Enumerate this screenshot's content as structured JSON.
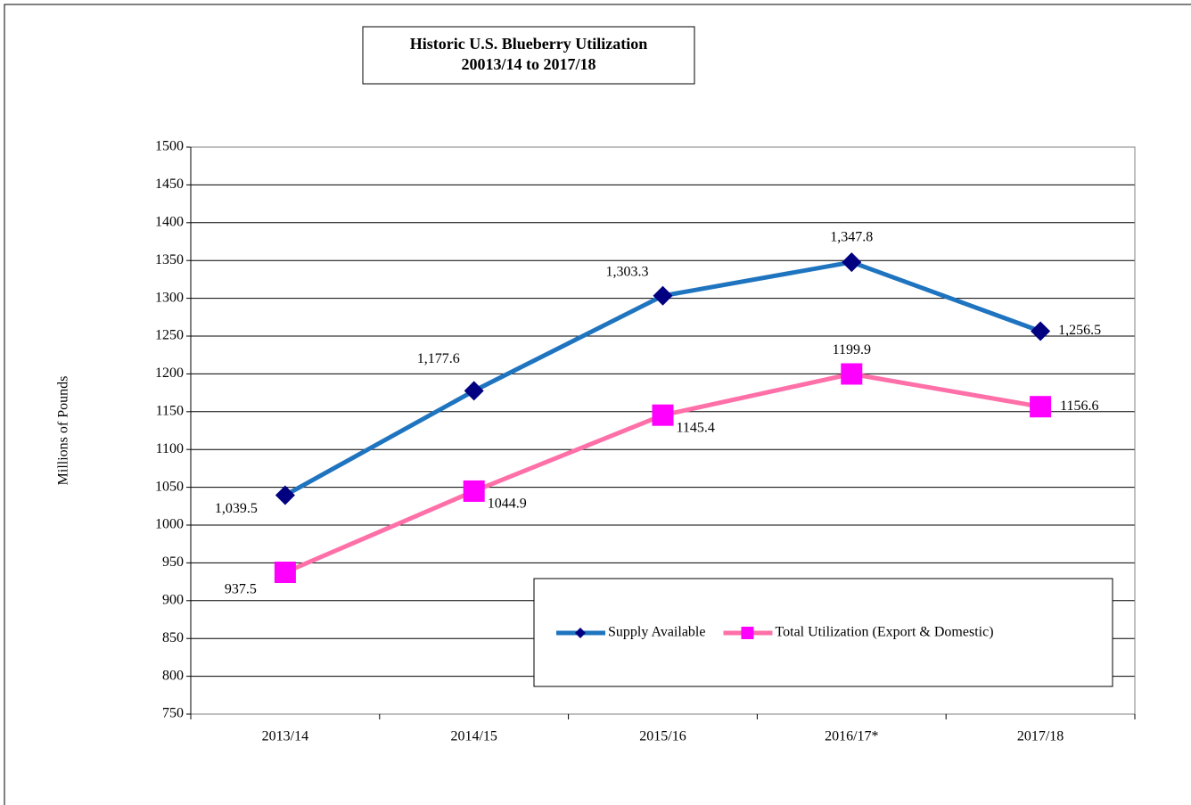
{
  "chart_data": {
    "type": "line",
    "title": "Historic U.S. Blueberry Utilization",
    "subtitle": "20013/14 to 2017/18",
    "y_label": "Millions of Pounds",
    "categories": [
      "2013/14",
      "2014/15",
      "2015/16",
      "2016/17*",
      "2017/18"
    ],
    "series": [
      {
        "name": "Supply Available",
        "color": "#1f74c0",
        "marker_color": "#000080",
        "marker": "diamond",
        "values": [
          1039.5,
          1177.6,
          1303.3,
          1347.8,
          1256.5
        ],
        "value_labels": [
          "1,039.5",
          "1,177.6",
          "1,303.3",
          "1,347.8",
          "1,256.5"
        ]
      },
      {
        "name": "Total Utilization (Export & Domestic)",
        "color": "#ff6fa8",
        "marker_color": "#ff00ff",
        "marker": "square",
        "values": [
          937.5,
          1044.9,
          1145.4,
          1199.9,
          1156.6
        ]
      }
    ],
    "ylim": [
      750,
      1500
    ],
    "yticks": [
      750,
      800,
      850,
      900,
      950,
      1000,
      1050,
      1100,
      1150,
      1200,
      1250,
      1300,
      1350,
      1400,
      1450,
      1500
    ],
    "grid": true
  }
}
